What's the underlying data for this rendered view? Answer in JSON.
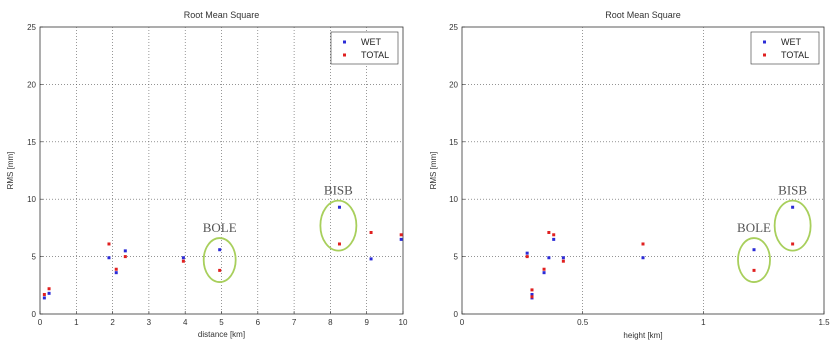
{
  "colors": {
    "wet": "#2b2bd6",
    "total": "#e02020",
    "ellipse": "#a8cf5c"
  },
  "chart_data": [
    {
      "type": "scatter",
      "title": "Root Mean Square",
      "xlabel": "distance [km]",
      "ylabel": "RMS [mm]",
      "xlim": [
        0,
        10
      ],
      "ylim": [
        0,
        25
      ],
      "xticks": [
        "0",
        "1",
        "2",
        "3",
        "4",
        "5",
        "6",
        "7",
        "8",
        "9",
        "10"
      ],
      "yticks": [
        "0",
        "5",
        "10",
        "15",
        "20",
        "25"
      ],
      "grid": true,
      "legend_position": "top-right",
      "series": [
        {
          "name": "WET",
          "points": [
            [
              0.12,
              1.4
            ],
            [
              0.25,
              1.8
            ],
            [
              1.9,
              4.9
            ],
            [
              2.1,
              3.6
            ],
            [
              2.35,
              5.5
            ],
            [
              3.95,
              4.9
            ],
            [
              4.95,
              5.6
            ],
            [
              8.25,
              9.3
            ],
            [
              9.12,
              4.8
            ],
            [
              9.95,
              6.5
            ]
          ]
        },
        {
          "name": "TOTAL",
          "points": [
            [
              0.12,
              1.7
            ],
            [
              0.25,
              2.2
            ],
            [
              1.9,
              6.1
            ],
            [
              2.1,
              3.9
            ],
            [
              2.35,
              5.0
            ],
            [
              3.95,
              4.6
            ],
            [
              4.95,
              3.8
            ],
            [
              8.25,
              6.1
            ],
            [
              9.12,
              7.1
            ],
            [
              9.95,
              6.9
            ]
          ]
        }
      ],
      "annotations": [
        {
          "text": "BOLE",
          "x": 4.95,
          "y": 4.7
        },
        {
          "text": "BISB",
          "x": 8.22,
          "y": 7.7
        }
      ]
    },
    {
      "type": "scatter",
      "title": "Root Mean Square",
      "xlabel": "height [km]",
      "ylabel": "RMS [mm]",
      "xlim": [
        0,
        1.5
      ],
      "ylim": [
        0,
        25
      ],
      "xticks": [
        "0",
        "0.5",
        "1",
        "1.5"
      ],
      "yticks": [
        "0",
        "5",
        "10",
        "15",
        "20",
        "25"
      ],
      "grid": true,
      "legend_position": "top-right",
      "series": [
        {
          "name": "WET",
          "points": [
            [
              0.27,
              5.3
            ],
            [
              0.29,
              1.7
            ],
            [
              0.29,
              1.4
            ],
            [
              0.34,
              3.6
            ],
            [
              0.36,
              4.9
            ],
            [
              0.38,
              6.5
            ],
            [
              0.42,
              4.9
            ],
            [
              0.75,
              4.9
            ],
            [
              1.21,
              5.6
            ],
            [
              1.37,
              9.3
            ]
          ]
        },
        {
          "name": "TOTAL",
          "points": [
            [
              0.27,
              5.0
            ],
            [
              0.29,
              2.1
            ],
            [
              0.29,
              1.5
            ],
            [
              0.34,
              3.9
            ],
            [
              0.36,
              7.1
            ],
            [
              0.38,
              6.9
            ],
            [
              0.42,
              4.6
            ],
            [
              0.75,
              6.1
            ],
            [
              1.21,
              3.8
            ],
            [
              1.37,
              6.1
            ]
          ]
        }
      ],
      "annotations": [
        {
          "text": "BOLE",
          "x": 1.21,
          "y": 4.7
        },
        {
          "text": "BISB",
          "x": 1.37,
          "y": 7.7
        }
      ]
    }
  ]
}
